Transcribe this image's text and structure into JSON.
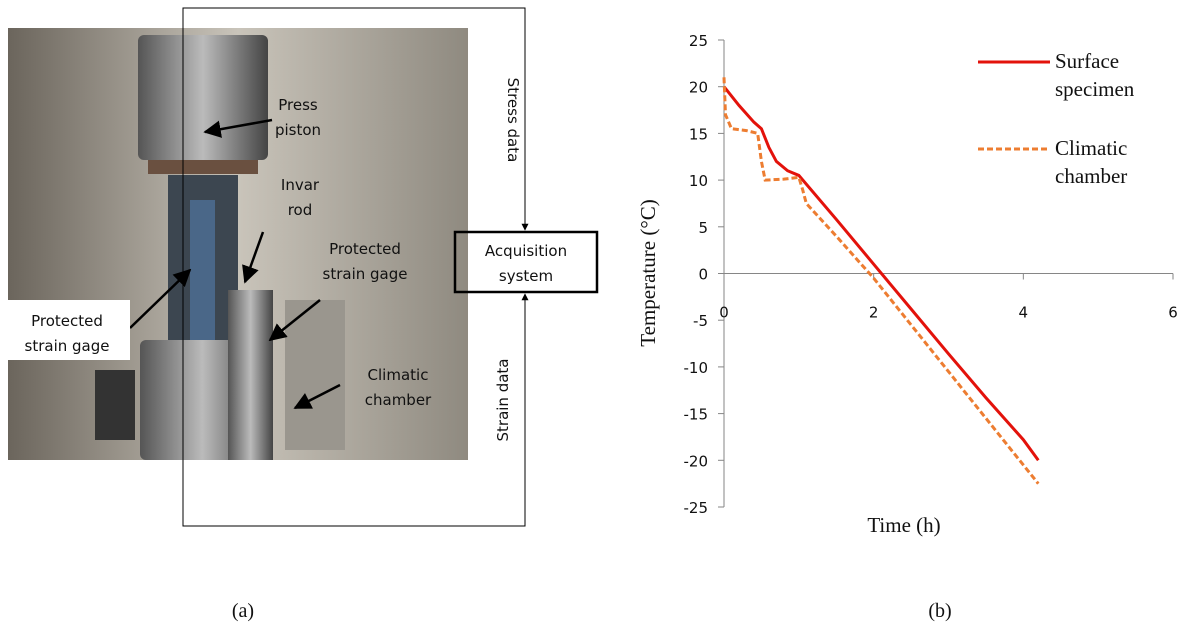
{
  "panel_a": {
    "caption": "(a)",
    "press_piston": [
      "Press",
      "piston"
    ],
    "invar_rod": [
      "Invar",
      "rod"
    ],
    "gage_right": [
      "Protected",
      "strain gage"
    ],
    "gage_left": [
      "Protected",
      "strain gage"
    ],
    "climatic_chamber": [
      "Climatic",
      "chamber"
    ],
    "stress_data": "Stress data",
    "strain_data": "Strain data",
    "acquisition": [
      "Acquisition",
      "system"
    ]
  },
  "chart_data": {
    "type": "line",
    "caption": "(b)",
    "x_label": "Time (h)",
    "y_label": "Temperature (°C)",
    "xlim": [
      0,
      6
    ],
    "xticks": [
      0,
      2,
      4,
      6
    ],
    "ylim": [
      -25,
      25
    ],
    "yticks": [
      -25,
      -20,
      -15,
      -10,
      -5,
      0,
      5,
      10,
      15,
      20,
      25
    ],
    "legend": "top-right",
    "series": [
      {
        "name": "Surface specimen",
        "color": "#e3120b",
        "dash": false,
        "x": [
          0,
          0.05,
          0.2,
          0.4,
          0.5,
          0.6,
          0.7,
          0.85,
          1.0,
          1.5,
          2.0,
          2.5,
          3.0,
          3.5,
          4.0,
          4.2
        ],
        "values": [
          20,
          19.5,
          18,
          16.2,
          15.5,
          13.5,
          12,
          11,
          10.5,
          5.8,
          1,
          -3.8,
          -8.6,
          -13.3,
          -17.8,
          -20
        ]
      },
      {
        "name": "Climatic chamber",
        "color": "#ed7d31",
        "dash": true,
        "x": [
          0,
          0.02,
          0.1,
          0.3,
          0.45,
          0.5,
          0.55,
          0.8,
          1.0,
          1.05,
          1.1,
          1.5,
          2.0,
          2.5,
          3.0,
          3.5,
          4.0,
          4.2
        ],
        "values": [
          21,
          17,
          15.5,
          15.3,
          15,
          12,
          10,
          10.1,
          10.3,
          9,
          7.5,
          4,
          -0.5,
          -5.5,
          -10.5,
          -15.5,
          -20.5,
          -22.5
        ]
      }
    ]
  }
}
